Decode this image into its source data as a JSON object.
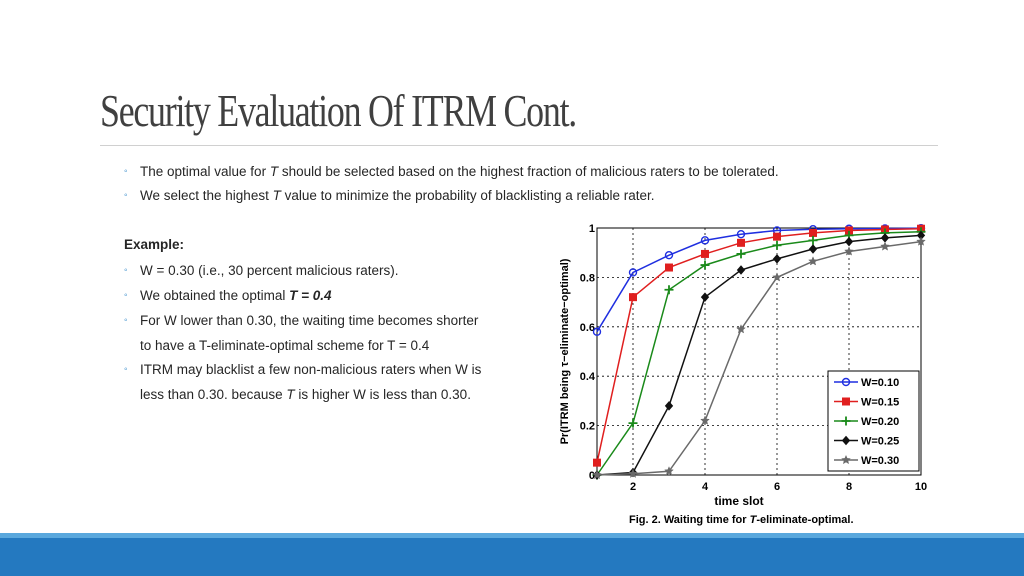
{
  "title": "Security Evaluation Of ITRM Cont.",
  "bullets_top": [
    {
      "pre": "The optimal value for ",
      "em": "T",
      "post": " should be selected based on the highest fraction of malicious raters to be tolerated."
    },
    {
      "pre": "We select the highest ",
      "em": "T",
      "post": " value to minimize the probability of blacklisting a reliable rater."
    }
  ],
  "example_heading": "Example:",
  "example_lines": {
    "w_line": "W = 0.30 (i.e., 30 percent malicious raters).",
    "optimal_pre": "We obtained the optimal ",
    "optimal_bold": "T = 0.4",
    "lower_1": "For W lower than 0.30, the waiting time becomes shorter",
    "lower_2": "to have a T-eliminate-optimal scheme for T = 0.4",
    "itrm_1": "ITRM may blacklist a few non-malicious raters when W is",
    "itrm_2_pre": "less than 0.30. because ",
    "itrm_2_em": "T",
    "itrm_2_post": " is higher W is less than 0.30."
  },
  "caption": {
    "pre": "Fig. 2. Waiting time for ",
    "em": "T",
    "post": "-eliminate-optimal."
  },
  "chart_data": {
    "type": "line",
    "xlabel": "time slot",
    "ylabel": "Pr(ITRM being τ−eliminate−optimal)",
    "xlim": [
      1,
      10
    ],
    "ylim": [
      0,
      1
    ],
    "x_ticks": [
      "2",
      "4",
      "6",
      "8",
      "10"
    ],
    "y_ticks": [
      "0",
      "0.2",
      "0.4",
      "0.6",
      "0.8",
      "1"
    ],
    "grid": true,
    "legend_position": "bottom-right",
    "x": [
      1,
      2,
      3,
      4,
      5,
      6,
      7,
      8,
      9,
      10
    ],
    "series": [
      {
        "name": "W=0.10",
        "color": "#1f2fe0",
        "marker": "circle",
        "values": [
          0.58,
          0.82,
          0.89,
          0.95,
          0.975,
          0.99,
          0.995,
          0.997,
          0.998,
          0.999
        ]
      },
      {
        "name": "W=0.15",
        "color": "#e01f1f",
        "marker": "square",
        "values": [
          0.05,
          0.72,
          0.84,
          0.895,
          0.94,
          0.965,
          0.98,
          0.99,
          0.994,
          0.997
        ]
      },
      {
        "name": "W=0.20",
        "color": "#1a8a1a",
        "marker": "plus",
        "values": [
          0.0,
          0.21,
          0.75,
          0.85,
          0.895,
          0.93,
          0.95,
          0.97,
          0.98,
          0.985
        ]
      },
      {
        "name": "W=0.25",
        "color": "#111111",
        "marker": "diamond",
        "values": [
          0.0,
          0.01,
          0.28,
          0.72,
          0.83,
          0.875,
          0.915,
          0.945,
          0.96,
          0.97
        ]
      },
      {
        "name": "W=0.30",
        "color": "#6a6a6a",
        "marker": "star",
        "values": [
          0.0,
          0.005,
          0.015,
          0.22,
          0.59,
          0.8,
          0.865,
          0.905,
          0.925,
          0.945
        ]
      }
    ]
  }
}
